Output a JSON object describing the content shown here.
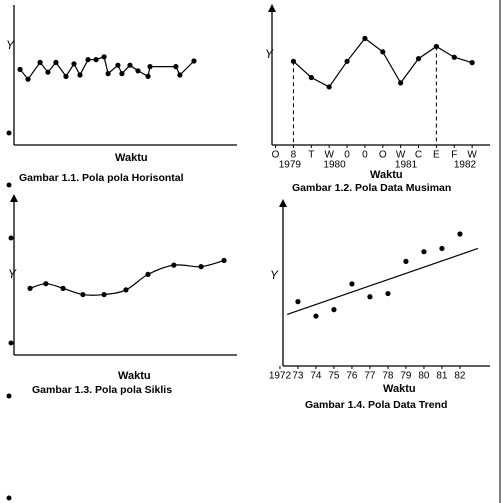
{
  "chart_data": [
    {
      "type": "line",
      "title": "Gambar 1.1. Pola pola Horisontal",
      "x_label": "Waktu",
      "y_label": "Y",
      "color": "#000000",
      "x": [
        2.7,
        6.3,
        11.7,
        15.2,
        18.8,
        23.3,
        26.9,
        29.6,
        33.2,
        36.8,
        40.4,
        42.2,
        46.6,
        48.4,
        52,
        55.6,
        60.1,
        61,
        72.6,
        74.4,
        80.7
      ],
      "values": [
        5.4,
        4.7,
        5.9,
        5.2,
        5.9,
        4.9,
        5.8,
        5.0,
        6.1,
        6.1,
        6.3,
        5.1,
        5.7,
        5.1,
        5.7,
        5.3,
        4.9,
        5.6,
        5.6,
        5.0,
        6.0
      ],
      "xlim": [
        0,
        100
      ],
      "ylim": [
        0,
        10
      ]
    },
    {
      "type": "line",
      "title": "Gambar 1.2. Pola Data Musiman",
      "x_label": "Waktu",
      "y_label": "Y",
      "color": "#000000",
      "x": [
        1,
        2,
        3,
        4,
        5,
        6,
        7,
        8,
        9,
        10,
        11
      ],
      "values": [
        6.2,
        5.0,
        4.3,
        6.2,
        7.9,
        6.9,
        4.6,
        6.4,
        7.3,
        6.5,
        6.1
      ],
      "xlim": [
        -0.2,
        12
      ],
      "ylim": [
        0,
        10
      ],
      "xticks": [
        {
          "value": 0,
          "label": "O"
        },
        {
          "value": 1,
          "label": "8"
        },
        {
          "value": 2,
          "label": "T"
        },
        {
          "value": 3,
          "label": "W"
        },
        {
          "value": 4,
          "label": "0"
        },
        {
          "value": 5,
          "label": "0"
        },
        {
          "value": 6,
          "label": "O"
        },
        {
          "value": 7,
          "label": "W"
        },
        {
          "value": 8,
          "label": "C"
        },
        {
          "value": 9,
          "label": "E"
        },
        {
          "value": 10,
          "label": "F"
        },
        {
          "value": 11,
          "label": "W"
        }
      ],
      "year_labels": [
        {
          "value": 0.8,
          "label": "1979"
        },
        {
          "value": 3.3,
          "label": "1980"
        },
        {
          "value": 7.3,
          "label": "1981"
        },
        {
          "value": 10.6,
          "label": "1982"
        }
      ],
      "guides": [
        1,
        9
      ]
    },
    {
      "type": "line",
      "smooth": true,
      "title": "Gambar 1.3. Pola pola Siklis",
      "x_label": "Waktu",
      "y_label": "Y",
      "color": "#000000",
      "x": [
        7.2,
        14.3,
        22,
        30.9,
        40.4,
        50.2,
        60.1,
        71.7,
        83.9,
        94.2
      ],
      "values": [
        4.3,
        4.6,
        4.3,
        3.9,
        3.9,
        4.2,
        5.2,
        5.8,
        5.7,
        6.1
      ],
      "xlim": [
        0,
        100
      ],
      "ylim": [
        0,
        10
      ]
    },
    {
      "type": "scatter",
      "title": "Gambar 1.4. Pola Data Trend",
      "x_label": "Waktu",
      "y_label": "Y",
      "color": "#000000",
      "x": [
        1973,
        1974,
        1975,
        1976,
        1977,
        1978,
        1979,
        1980,
        1981,
        1982
      ],
      "values": [
        4.0,
        3.1,
        3.5,
        5.1,
        4.3,
        4.5,
        6.5,
        7.1,
        7.3,
        8.2
      ],
      "trend": {
        "x": [
          1972.4,
          1983
        ],
        "values": [
          3.2,
          7.3
        ]
      },
      "xlim": [
        1972.17,
        1983.67
      ],
      "ylim": [
        0,
        10
      ],
      "xticks": [
        1972,
        {
          "value": 1973,
          "label": "73"
        },
        {
          "value": 1974,
          "label": "74"
        },
        {
          "value": 1975,
          "label": "75"
        },
        {
          "value": 1976,
          "label": "76"
        },
        {
          "value": 1977,
          "label": "77"
        },
        {
          "value": 1978,
          "label": "78"
        },
        {
          "value": 1979,
          "label": "79"
        },
        {
          "value": 1980,
          "label": "80"
        },
        {
          "value": 1981,
          "label": "81"
        },
        {
          "value": 1982,
          "label": "82"
        }
      ]
    }
  ]
}
